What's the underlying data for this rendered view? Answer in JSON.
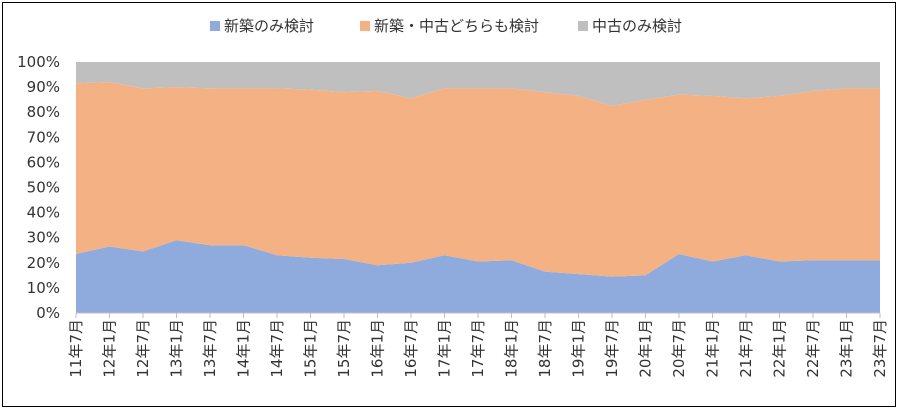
{
  "chart_data": {
    "type": "area",
    "stacked": true,
    "percent": true,
    "categories": [
      "11年7月",
      "12年1月",
      "12年7月",
      "13年1月",
      "13年7月",
      "14年1月",
      "14年7月",
      "15年1月",
      "15年7月",
      "16年1月",
      "16年7月",
      "17年1月",
      "17年7月",
      "18年1月",
      "18年7月",
      "19年1月",
      "19年7月",
      "20年1月",
      "20年7月",
      "21年1月",
      "21年7月",
      "22年1月",
      "22年7月",
      "23年1月",
      "23年7月"
    ],
    "series": [
      {
        "name": "新築のみ検討",
        "color": "#8faadc",
        "values": [
          23.5,
          26.5,
          24.5,
          29,
          27,
          27,
          23,
          22,
          21.5,
          19,
          20,
          23,
          20.5,
          21,
          16.5,
          15.5,
          14.5,
          15,
          23.5,
          20.5,
          23,
          20.5,
          21,
          21,
          21
        ]
      },
      {
        "name": "新築・中古どちらも検討",
        "color": "#f4b183",
        "values": [
          68,
          65.5,
          65,
          61,
          62.5,
          62.5,
          66.5,
          67,
          66.5,
          69.5,
          65.5,
          66.5,
          69,
          68.5,
          71.5,
          71,
          68,
          70,
          63.5,
          66,
          62.5,
          66,
          67.5,
          68.5,
          68.5
        ]
      },
      {
        "name": "中古のみ検討",
        "color": "#bfbfbf",
        "values": [
          8.5,
          8,
          10.5,
          10,
          10.5,
          10.5,
          10.5,
          11,
          12,
          11.5,
          14.5,
          10.5,
          10.5,
          10.5,
          12,
          13.5,
          17.5,
          15,
          13,
          13.5,
          14.5,
          13.5,
          11.5,
          10.5,
          10.5
        ]
      }
    ],
    "yticks": [
      "0%",
      "10%",
      "20%",
      "30%",
      "40%",
      "50%",
      "60%",
      "70%",
      "80%",
      "90%",
      "100%"
    ],
    "ylim": [
      0,
      100
    ],
    "grid": false,
    "legend_position": "top"
  }
}
